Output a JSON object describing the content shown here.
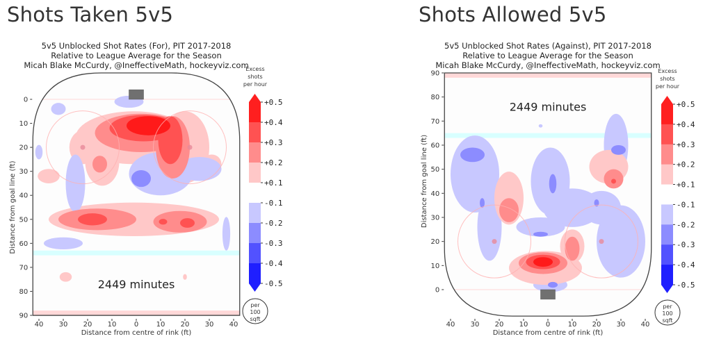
{
  "panels": [
    {
      "heading": "Shots Taken 5v5",
      "chart_data": {
        "type": "heatmap",
        "title_lines": [
          "5v5 Unblocked Shot Rates (For), PIT 2017-2018",
          "Relative to League Average for the Season",
          "Micah Blake McCurdy, @IneffectiveMath, hockeyviz.com"
        ],
        "xlabel": "Distance from centre of rink (ft)",
        "ylabel": "Distance from goal line (ft)",
        "xticks": [
          "40",
          "30",
          "20",
          "10",
          "0",
          "10",
          "20",
          "30",
          "40"
        ],
        "xtick_values": [
          -40,
          -30,
          -20,
          -10,
          0,
          10,
          20,
          30,
          40
        ],
        "yticks": [
          "0",
          "10",
          "20",
          "30",
          "40",
          "50",
          "60",
          "70",
          "80",
          "90"
        ],
        "ytick_values": [
          0,
          10,
          20,
          30,
          40,
          50,
          60,
          70,
          80,
          90
        ],
        "y_direction": "down",
        "xlim": [
          -42.5,
          42.5
        ],
        "ylim": [
          -11,
          90
        ],
        "annotation": "2449 minutes",
        "annotation_pos": [
          0,
          77
        ],
        "colorbar": {
          "title_lines": [
            "Excess",
            "shots",
            "per hour"
          ],
          "ticks": [
            "+0.5",
            "+0.4",
            "+0.3",
            "+0.2",
            "+0.1",
            "-0.1",
            "-0.2",
            "-0.3",
            "-0.4",
            "-0.5"
          ],
          "units_lines": [
            "per",
            "100",
            "sqft"
          ]
        },
        "blobs": [
          {
            "level": 1,
            "cx": -1,
            "cy": 16,
            "rx": 24,
            "ry": 11
          },
          {
            "level": 1,
            "cx": 20,
            "cy": 20,
            "rx": 10,
            "ry": 15
          },
          {
            "level": 2,
            "cx": 2,
            "cy": 14,
            "rx": 19,
            "ry": 8
          },
          {
            "level": 2,
            "cx": 15,
            "cy": 20,
            "rx": 7,
            "ry": 13
          },
          {
            "level": 3,
            "cx": 3,
            "cy": 12,
            "rx": 14,
            "ry": 5.5
          },
          {
            "level": 3,
            "cx": 14,
            "cy": 17,
            "rx": 5,
            "ry": 10
          },
          {
            "level": 4,
            "cx": 5,
            "cy": 11,
            "rx": 9,
            "ry": 4
          },
          {
            "level": 1,
            "cx": -22,
            "cy": 20,
            "rx": 5.5,
            "ry": 7
          },
          {
            "level": 1,
            "cx": -14,
            "cy": 26,
            "rx": 7,
            "ry": 10
          },
          {
            "level": 2,
            "cx": -15,
            "cy": 27,
            "rx": 3,
            "ry": 3.5
          },
          {
            "level": 1,
            "cx": -36,
            "cy": 32,
            "rx": 4.5,
            "ry": 3
          },
          {
            "level": 1,
            "cx": 31,
            "cy": 27,
            "rx": 4,
            "ry": 4
          },
          {
            "level": 1,
            "cx": -1,
            "cy": 50,
            "rx": 35,
            "ry": 7
          },
          {
            "level": 2,
            "cx": -16,
            "cy": 50,
            "rx": 16,
            "ry": 4.5
          },
          {
            "level": 2,
            "cx": 18,
            "cy": 51,
            "rx": 11,
            "ry": 4.5
          },
          {
            "level": 3,
            "cx": -18,
            "cy": 50,
            "rx": 6,
            "ry": 2.5
          },
          {
            "level": 3,
            "cx": 11,
            "cy": 51,
            "rx": 1.7,
            "ry": 1.2
          },
          {
            "level": 3,
            "cx": 21,
            "cy": 51.5,
            "rx": 3,
            "ry": 2
          },
          {
            "level": 1,
            "cx": -29,
            "cy": 74,
            "rx": 2.5,
            "ry": 2
          },
          {
            "level": 1,
            "cx": 20,
            "cy": 74,
            "rx": 0.8,
            "ry": 1.2
          },
          {
            "level": -1,
            "cx": -32,
            "cy": 4,
            "rx": 3,
            "ry": 2.5
          },
          {
            "level": -1,
            "cx": -40,
            "cy": 22,
            "rx": 1.5,
            "ry": 3
          },
          {
            "level": -1,
            "cx": -25,
            "cy": 35,
            "rx": 4,
            "ry": 12
          },
          {
            "level": -1,
            "cx": -3,
            "cy": 1,
            "rx": 6,
            "ry": 2.5
          },
          {
            "level": -1,
            "cx": 10,
            "cy": 31,
            "rx": 13,
            "ry": 9
          },
          {
            "level": -1,
            "cx": 26,
            "cy": 29,
            "rx": 9,
            "ry": 5
          },
          {
            "level": -2,
            "cx": 2,
            "cy": 33,
            "rx": 4,
            "ry": 3.5
          },
          {
            "level": -1,
            "cx": -30,
            "cy": 60,
            "rx": 8,
            "ry": 2.5
          },
          {
            "level": -1,
            "cx": 37,
            "cy": 56,
            "rx": 1.6,
            "ry": 7
          }
        ]
      }
    },
    {
      "heading": "Shots Allowed 5v5",
      "chart_data": {
        "type": "heatmap",
        "title_lines": [
          "5v5 Unblocked Shot Rates (Against), PIT 2017-2018",
          "Relative to League Average for the Season",
          "Micah Blake McCurdy, @IneffectiveMath, hockeyviz.com"
        ],
        "xlabel": "Distance from centre of rink (ft)",
        "ylabel": "Distance from goal line (ft)",
        "xticks": [
          "40",
          "30",
          "20",
          "10",
          "0",
          "10",
          "20",
          "30",
          "40"
        ],
        "xtick_values": [
          -40,
          -30,
          -20,
          -10,
          0,
          10,
          20,
          30,
          40
        ],
        "yticks": [
          "0",
          "10",
          "20",
          "30",
          "40",
          "50",
          "60",
          "70",
          "80",
          "90"
        ],
        "ytick_values": [
          0,
          10,
          20,
          30,
          40,
          50,
          60,
          70,
          80,
          90
        ],
        "y_direction": "up",
        "xlim": [
          -42.5,
          42.5
        ],
        "ylim": [
          -11,
          90
        ],
        "annotation": "2449 minutes",
        "annotation_pos": [
          0,
          76
        ],
        "colorbar": {
          "title_lines": [
            "Excess",
            "shots",
            "per hour"
          ],
          "ticks": [
            "+0.5",
            "+0.4",
            "+0.3",
            "+0.2",
            "+0.1",
            "-0.1",
            "-0.2",
            "-0.3",
            "-0.4",
            "-0.5"
          ],
          "units_lines": [
            "per",
            "100",
            "sqft"
          ]
        },
        "blobs": [
          {
            "level": -1,
            "cx": -30,
            "cy": 48,
            "rx": 10,
            "ry": 16
          },
          {
            "level": -1,
            "cx": -24,
            "cy": 26,
            "rx": 5,
            "ry": 14
          },
          {
            "level": -2,
            "cx": -31,
            "cy": 56,
            "rx": 5,
            "ry": 3
          },
          {
            "level": -2,
            "cx": -27,
            "cy": 36,
            "rx": 1,
            "ry": 2
          },
          {
            "level": -1,
            "cx": 1,
            "cy": 45,
            "rx": 8,
            "ry": 14
          },
          {
            "level": -1,
            "cx": 10,
            "cy": 34,
            "rx": 12,
            "ry": 8
          },
          {
            "level": -1,
            "cx": -3,
            "cy": 26,
            "rx": 10,
            "ry": 4
          },
          {
            "level": -2,
            "cx": 2,
            "cy": 44,
            "rx": 1.5,
            "ry": 4
          },
          {
            "level": -2,
            "cx": -3,
            "cy": 23,
            "rx": 3,
            "ry": 1
          },
          {
            "level": -1,
            "cx": 28,
            "cy": 60,
            "rx": 5,
            "ry": 13
          },
          {
            "level": -2,
            "cx": 29,
            "cy": 58,
            "rx": 3,
            "ry": 2
          },
          {
            "level": -1,
            "cx": 30,
            "cy": 20,
            "rx": 10,
            "ry": 15
          },
          {
            "level": -1,
            "cx": 22,
            "cy": 34,
            "rx": 8,
            "ry": 7
          },
          {
            "level": -2,
            "cx": 20,
            "cy": 36,
            "rx": 1,
            "ry": 1.5
          },
          {
            "level": -1,
            "cx": -3,
            "cy": 68,
            "rx": 0.8,
            "ry": 0.7
          },
          {
            "level": -1,
            "cx": 1,
            "cy": 2,
            "rx": 7,
            "ry": 3
          },
          {
            "level": -2,
            "cx": 2,
            "cy": 2,
            "rx": 2,
            "ry": 1.2
          },
          {
            "level": 1,
            "cx": -16,
            "cy": 38,
            "rx": 6,
            "ry": 11
          },
          {
            "level": 2,
            "cx": -16,
            "cy": 33,
            "rx": 4,
            "ry": 5
          },
          {
            "level": 1,
            "cx": 25,
            "cy": 51,
            "rx": 8,
            "ry": 7
          },
          {
            "level": 2,
            "cx": 27,
            "cy": 46,
            "rx": 4,
            "ry": 4
          },
          {
            "level": 3,
            "cx": 27,
            "cy": 45,
            "rx": 1,
            "ry": 1
          },
          {
            "level": 1,
            "cx": -1,
            "cy": 9,
            "rx": 15,
            "ry": 7
          },
          {
            "level": 1,
            "cx": 10,
            "cy": 18,
            "rx": 5,
            "ry": 7
          },
          {
            "level": 2,
            "cx": -2,
            "cy": 11,
            "rx": 10,
            "ry": 4.5
          },
          {
            "level": 2,
            "cx": 10,
            "cy": 17,
            "rx": 3,
            "ry": 5
          },
          {
            "level": 3,
            "cx": -2,
            "cy": 11.5,
            "rx": 7,
            "ry": 3
          },
          {
            "level": 4,
            "cx": -2,
            "cy": 11.5,
            "rx": 4,
            "ry": 2
          }
        ]
      }
    }
  ],
  "colors": {
    "pos_levels": [
      "#ffc8c8",
      "#ff8c8c",
      "#ff5252",
      "#ff1a1a"
    ],
    "neg_levels": [
      "#c8c8ff",
      "#8c8cff",
      "#5252ff",
      "#1a1aff"
    ],
    "cb_pos": [
      "#ffc8c8",
      "#ff8c8c",
      "#ff5252",
      "#ff1f1f",
      "#ff1f1f"
    ],
    "cb_neg": [
      "#c8c8ff",
      "#8c8cff",
      "#5252ff",
      "#1f1fff",
      "#1f1fff"
    ],
    "rink_line": "#444444",
    "goal_line": "#ffd8d8",
    "blue_line": "#d8ffff",
    "net": "#707070"
  }
}
